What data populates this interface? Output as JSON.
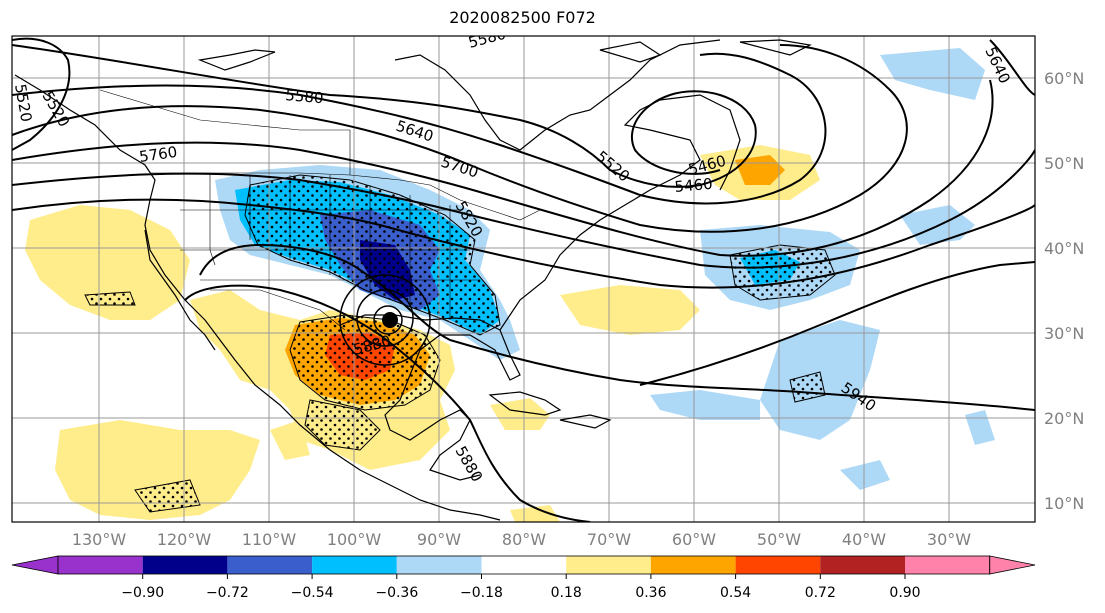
{
  "title": "2020082500 F072",
  "lon_labels": [
    "130°W",
    "120°W",
    "110°W",
    "100°W",
    "90°W",
    "80°W",
    "70°W",
    "60°W",
    "50°W",
    "40°W",
    "30°W"
  ],
  "lat_labels": [
    "60°N",
    "50°N",
    "40°N",
    "30°N",
    "20°N",
    "10°N"
  ],
  "contour_labels": [
    "5580",
    "5580",
    "5640",
    "5700",
    "5760",
    "5820",
    "5520",
    "5520",
    "5460",
    "5460",
    "5880",
    "5880",
    "5940",
    "5640",
    "5520"
  ],
  "colorbar": {
    "colors": [
      "#9932CC",
      "#00008B",
      "#3A5FCD",
      "#00BFFF",
      "#ADD8F6",
      "#FFFFFF",
      "#FFEC8B",
      "#FFA500",
      "#FF4500",
      "#B22222",
      "#FF82AB"
    ],
    "tick_labels": [
      "−0.90",
      "−0.72",
      "−0.54",
      "−0.36",
      "−0.18",
      "0.18",
      "0.36",
      "0.54",
      "0.72",
      "0.90"
    ]
  },
  "storm_marker": "storm-center"
}
